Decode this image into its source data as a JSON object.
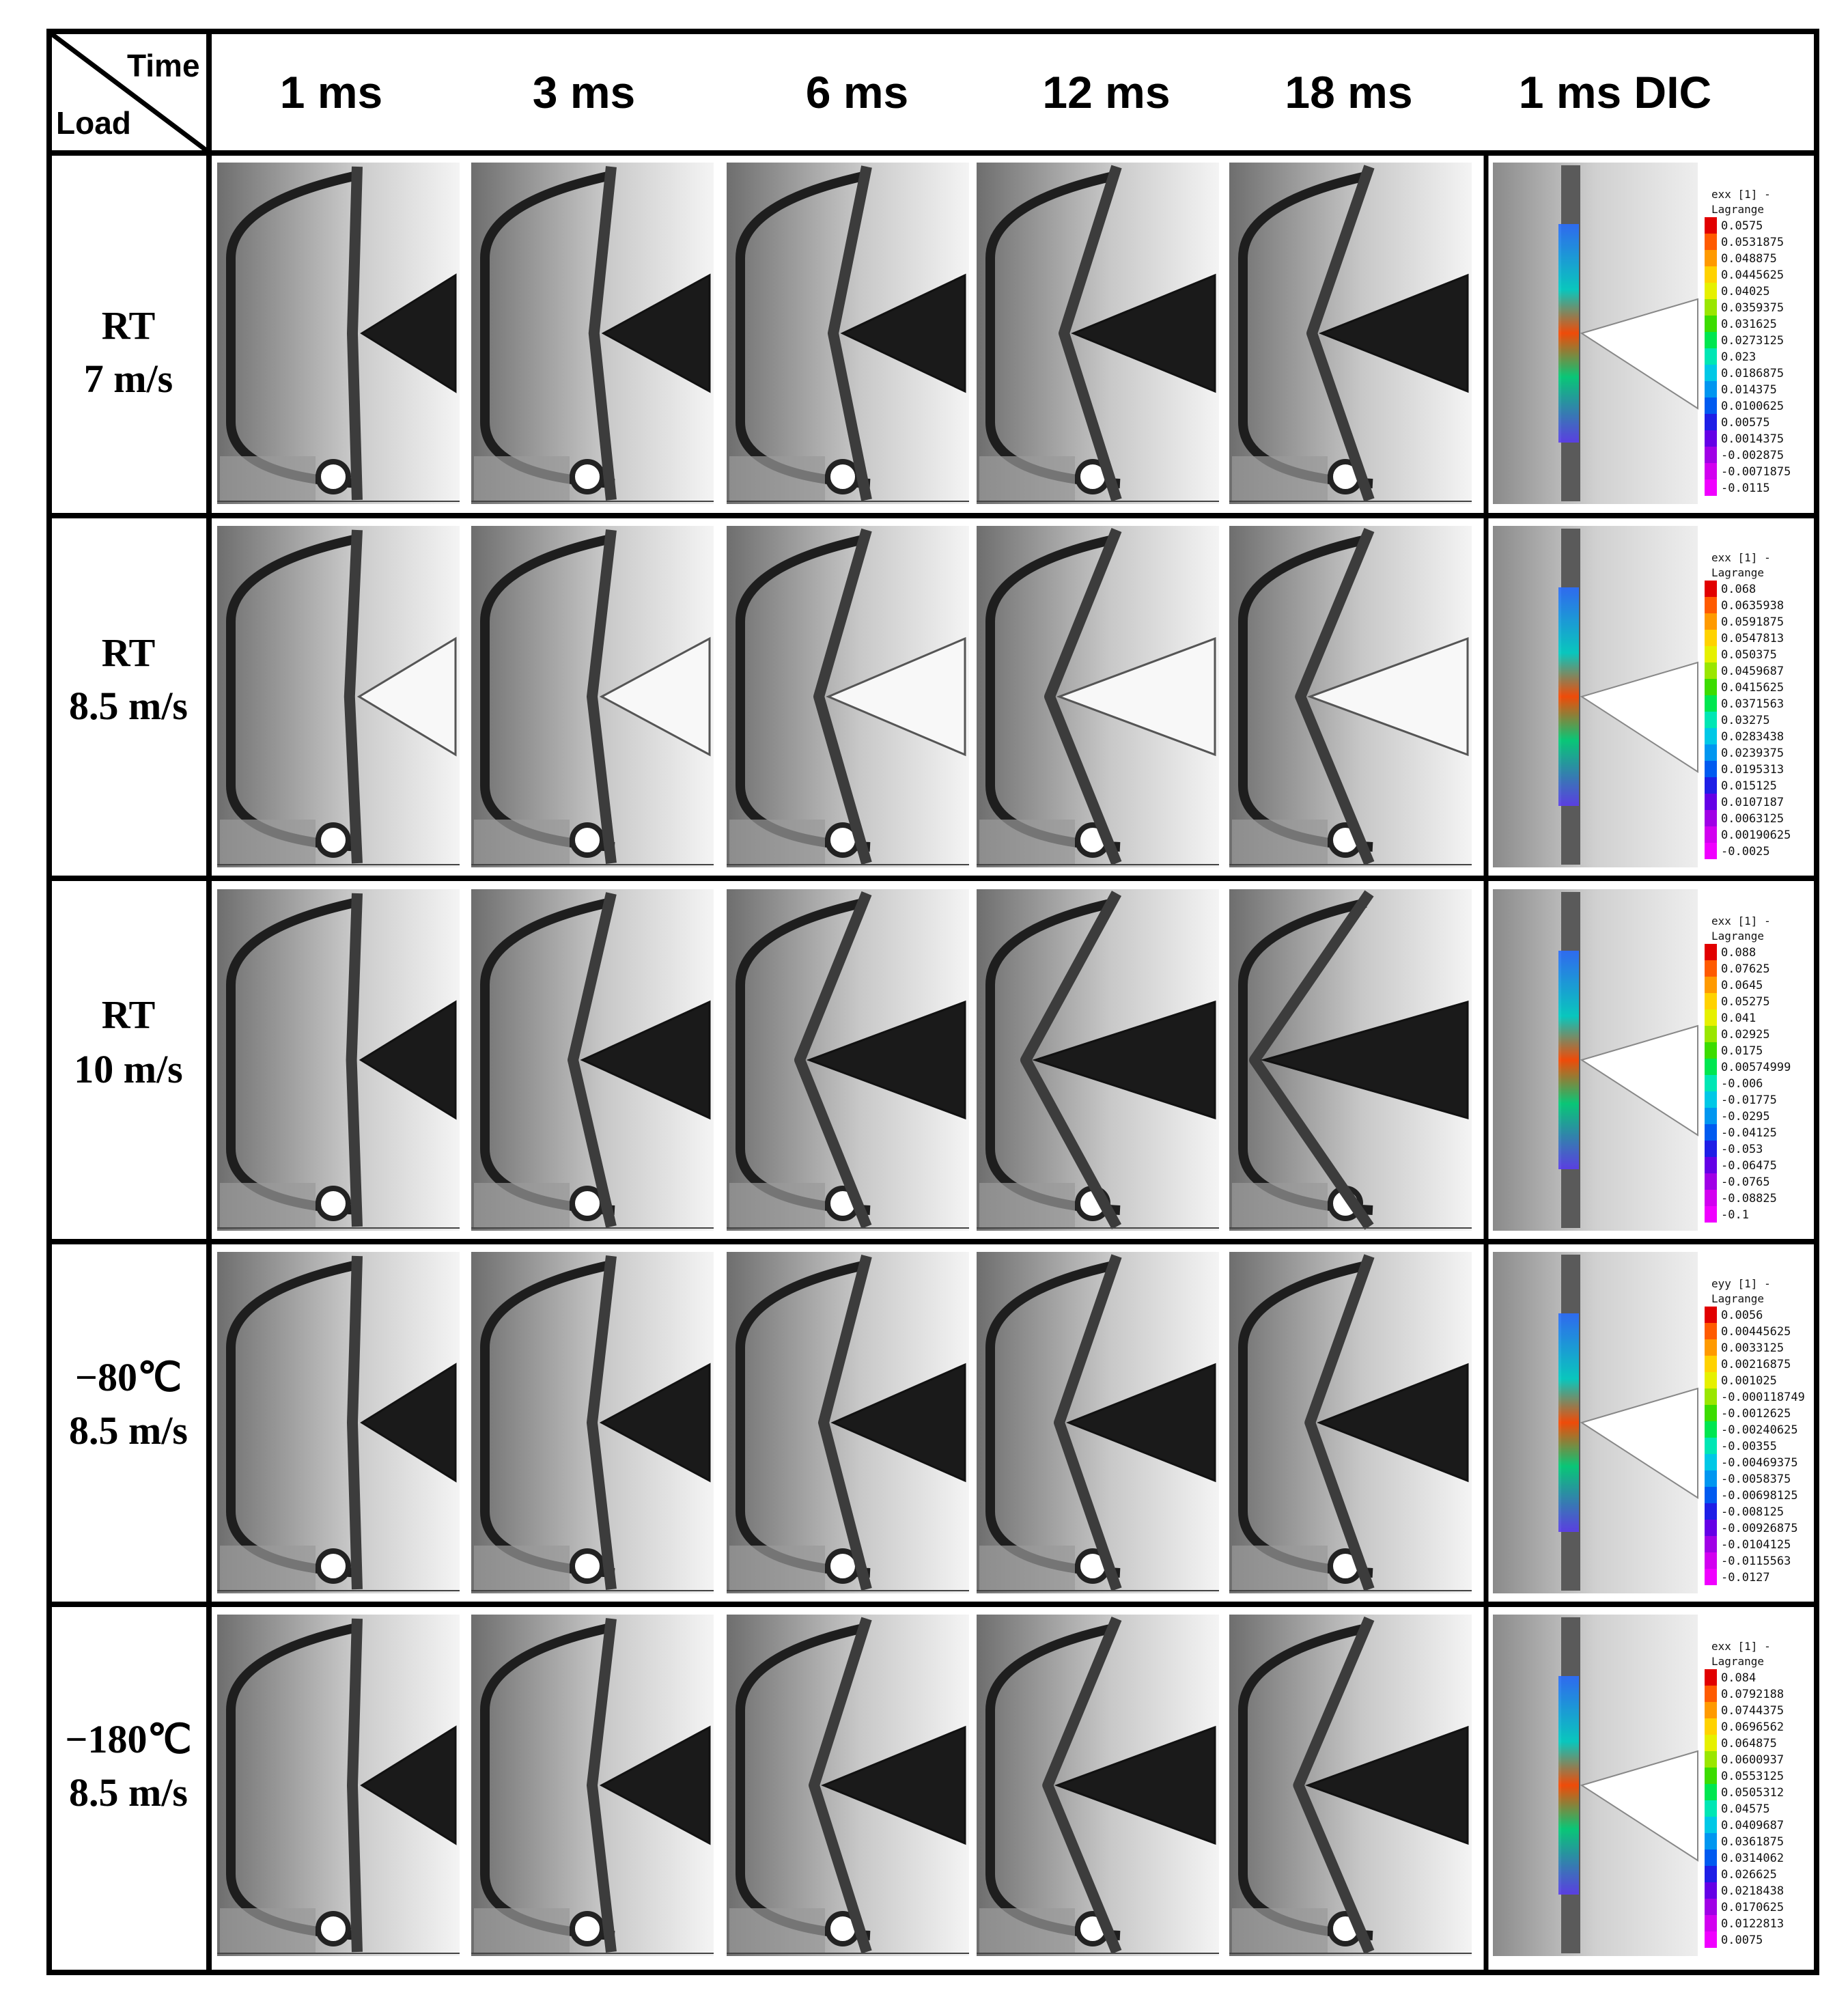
{
  "corner": {
    "time_label": "Time",
    "load_label": "Load"
  },
  "columns": [
    "1 ms",
    "3 ms",
    "6 ms",
    "12 ms",
    "18 ms",
    "1 ms DIC"
  ],
  "rows": [
    {
      "label_line1": "RT",
      "label_line2": "7 m/s",
      "frames": [
        {
          "bend": 0.05,
          "tip": 0.0,
          "cone": "dark"
        },
        {
          "bend": 0.18,
          "tip": 0.1,
          "cone": "dark"
        },
        {
          "bend": 0.35,
          "tip": 0.25,
          "cone": "dark"
        },
        {
          "bend": 0.55,
          "tip": 0.4,
          "cone": "dark"
        },
        {
          "bend": 0.6,
          "tip": 0.45,
          "cone": "dark"
        }
      ],
      "dic": {
        "title_line1": "exx [1] -",
        "title_line2": "Lagrange",
        "ticks": [
          "0.0575",
          "0.0531875",
          "0.048875",
          "0.0445625",
          "0.04025",
          "0.0359375",
          "0.031625",
          "0.0273125",
          "0.023",
          "0.0186875",
          "0.014375",
          "0.0100625",
          "0.00575",
          "0.0014375",
          "-0.002875",
          "-0.0071875",
          "-0.0115"
        ]
      }
    },
    {
      "label_line1": "RT",
      "label_line2": "8.5 m/s",
      "frames": [
        {
          "bend": 0.08,
          "tip": 0.0,
          "cone": "light"
        },
        {
          "bend": 0.2,
          "tip": 0.1,
          "cone": "light"
        },
        {
          "bend": 0.5,
          "tip": 0.35,
          "cone": "light"
        },
        {
          "bend": 0.7,
          "tip": 0.5,
          "cone": "light"
        },
        {
          "bend": 0.72,
          "tip": 0.52,
          "cone": "light"
        }
      ],
      "dic": {
        "title_line1": "exx [1] -",
        "title_line2": "Lagrange",
        "ticks": [
          "0.068",
          "0.0635938",
          "0.0591875",
          "0.0547813",
          "0.050375",
          "0.0459687",
          "0.0415625",
          "0.0371563",
          "0.03275",
          "0.0283438",
          "0.0239375",
          "0.0195313",
          "0.015125",
          "0.0107187",
          "0.0063125",
          "0.00190625",
          "-0.0025"
        ]
      }
    },
    {
      "label_line1": "RT",
      "label_line2": "10 m/s",
      "frames": [
        {
          "bend": 0.06,
          "tip": 0.0,
          "cone": "dark"
        },
        {
          "bend": 0.4,
          "tip": 0.3,
          "cone": "dark"
        },
        {
          "bend": 0.7,
          "tip": 0.55,
          "cone": "dark"
        },
        {
          "bend": 0.95,
          "tip": 0.85,
          "cone": "dark"
        },
        {
          "bend": 1.2,
          "tip": 1.1,
          "cone": "dark"
        }
      ],
      "dic": {
        "title_line1": "exx [1] -",
        "title_line2": "Lagrange",
        "ticks": [
          "0.088",
          "0.07625",
          "0.0645",
          "0.05275",
          "0.041",
          "0.02925",
          "0.0175",
          "0.00574999",
          "-0.006",
          "-0.01775",
          "-0.0295",
          "-0.04125",
          "-0.053",
          "-0.06475",
          "-0.0765",
          "-0.08825",
          "-0.1"
        ]
      }
    },
    {
      "label_line1": "−80℃",
      "label_line2": "8.5 m/s",
      "frames": [
        {
          "bend": 0.05,
          "tip": 0.0,
          "cone": "dark"
        },
        {
          "bend": 0.2,
          "tip": 0.12,
          "cone": "dark"
        },
        {
          "bend": 0.45,
          "tip": 0.3,
          "cone": "dark"
        },
        {
          "bend": 0.6,
          "tip": 0.42,
          "cone": "dark"
        },
        {
          "bend": 0.62,
          "tip": 0.45,
          "cone": "dark"
        }
      ],
      "dic": {
        "title_line1": "eyy [1] -",
        "title_line2": "Lagrange",
        "ticks": [
          "0.0056",
          "0.00445625",
          "0.0033125",
          "0.00216875",
          "0.001025",
          "-0.000118749",
          "-0.0012625",
          "-0.00240625",
          "-0.00355",
          "-0.00469375",
          "-0.0058375",
          "-0.00698125",
          "-0.008125",
          "-0.00926875",
          "-0.0104125",
          "-0.0115563",
          "-0.0127"
        ]
      }
    },
    {
      "label_line1": "−180℃",
      "label_line2": "8.5 m/s",
      "frames": [
        {
          "bend": 0.05,
          "tip": 0.0,
          "cone": "dark"
        },
        {
          "bend": 0.2,
          "tip": 0.1,
          "cone": "dark"
        },
        {
          "bend": 0.55,
          "tip": 0.38,
          "cone": "dark"
        },
        {
          "bend": 0.72,
          "tip": 0.5,
          "cone": "dark"
        },
        {
          "bend": 0.74,
          "tip": 0.52,
          "cone": "dark"
        }
      ],
      "dic": {
        "title_line1": "exx [1] -",
        "title_line2": "Lagrange",
        "ticks": [
          "0.084",
          "0.0792188",
          "0.0744375",
          "0.0696562",
          "0.064875",
          "0.0600937",
          "0.0553125",
          "0.0505312",
          "0.04575",
          "0.0409687",
          "0.0361875",
          "0.0314062",
          "0.026625",
          "0.0218438",
          "0.0170625",
          "0.0122813",
          "0.0075"
        ]
      }
    }
  ],
  "colors": {
    "border": "#000000",
    "specimen": "#3c3c3c",
    "cone_dark": "#1a1a1a",
    "dic_scale": [
      "#e10000",
      "#ff5a00",
      "#ff9a00",
      "#ffd200",
      "#e6f000",
      "#9ae600",
      "#3cdc00",
      "#00e650",
      "#00e6b4",
      "#00c8e6",
      "#0096f0",
      "#005af0",
      "#1e1ee6",
      "#6400e6",
      "#a000e6",
      "#d200f0",
      "#f000ff"
    ]
  }
}
